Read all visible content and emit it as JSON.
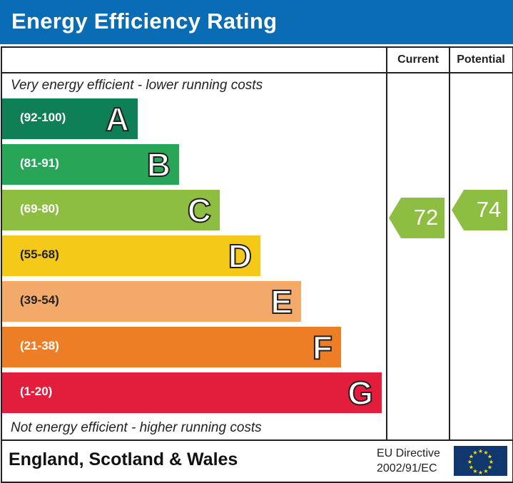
{
  "title": "Energy Efficiency Rating",
  "columns": {
    "current": "Current",
    "potential": "Potential"
  },
  "top_note": "Very energy efficient - lower running costs",
  "bottom_note": "Not energy efficient - higher running costs",
  "footer": {
    "region": "England, Scotland & Wales",
    "directive_line1": "EU Directive",
    "directive_line2": "2002/91/EC",
    "flag_icon": "eu-flag-icon"
  },
  "chart_data": {
    "type": "bar",
    "categories": [
      "A",
      "B",
      "C",
      "D",
      "E",
      "F",
      "G"
    ],
    "ranges": [
      "(92-100)",
      "(81-91)",
      "(69-80)",
      "(55-68)",
      "(39-54)",
      "(21-38)",
      "(1-20)"
    ],
    "colors": [
      "#0f7f55",
      "#27a658",
      "#8dbe41",
      "#f5c917",
      "#f2a96a",
      "#ee7e25",
      "#e31d3c"
    ],
    "current": {
      "value": 72,
      "band": "C",
      "color": "#8dbe41"
    },
    "potential": {
      "value": 74,
      "band": "C",
      "color": "#8dbe41"
    }
  }
}
